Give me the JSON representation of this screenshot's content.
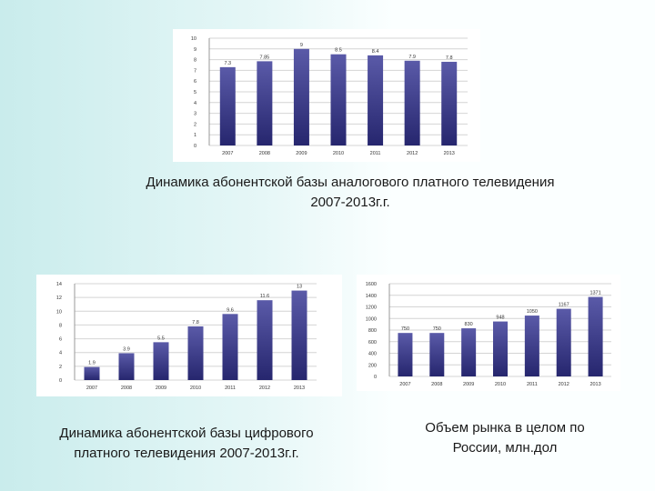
{
  "captions": {
    "analog": [
      "Динамика абонентской базы аналогового платного телевидения",
      "2007-2013г.г."
    ],
    "digital": [
      "Динамика абонентской базы цифрового",
      "платного телевидения 2007-2013г.г."
    ],
    "market": [
      "Объем рынка в целом по",
      "России, млн.дол"
    ]
  },
  "colors": {
    "bar_top": "#5a5aa8",
    "bar_bottom": "#26266e",
    "grid": "#d4d4d4",
    "axis_text": "#333333"
  },
  "chart_data": [
    {
      "id": "analog",
      "type": "bar",
      "categories": [
        "2007",
        "2008",
        "2009",
        "2010",
        "2011",
        "2012",
        "2013"
      ],
      "values": [
        7.3,
        7.85,
        9,
        8.5,
        8.4,
        7.9,
        7.8
      ],
      "data_labels": [
        "7.3",
        "7.85",
        "9",
        "8.5",
        "8.4",
        "7.9",
        "7.8"
      ],
      "yticks": [
        0,
        1,
        2,
        3,
        4,
        5,
        6,
        7,
        8,
        9,
        10
      ],
      "ylim": [
        0,
        10
      ],
      "grid": true
    },
    {
      "id": "digital",
      "type": "bar",
      "categories": [
        "2007",
        "2008",
        "2009",
        "2010",
        "2011",
        "2012",
        "2013"
      ],
      "values": [
        1.9,
        3.9,
        5.5,
        7.8,
        9.6,
        11.6,
        13
      ],
      "data_labels": [
        "1.9",
        "3.9",
        "5.5",
        "7.8",
        "9.6",
        "11.6",
        "13"
      ],
      "yticks": [
        0,
        2,
        4,
        6,
        8,
        10,
        12,
        14
      ],
      "ylim": [
        0,
        14
      ],
      "grid": true
    },
    {
      "id": "market",
      "type": "bar",
      "categories": [
        "2007",
        "2008",
        "2009",
        "2010",
        "2011",
        "2012",
        "2013"
      ],
      "values": [
        750,
        750,
        830,
        948,
        1050,
        1167,
        1371
      ],
      "data_labels": [
        "750",
        "750",
        "830",
        "948",
        "1050",
        "1167",
        "1371"
      ],
      "yticks": [
        0,
        200,
        400,
        600,
        800,
        1000,
        1200,
        1400,
        1600
      ],
      "ylim": [
        0,
        1600
      ],
      "grid": true
    }
  ]
}
